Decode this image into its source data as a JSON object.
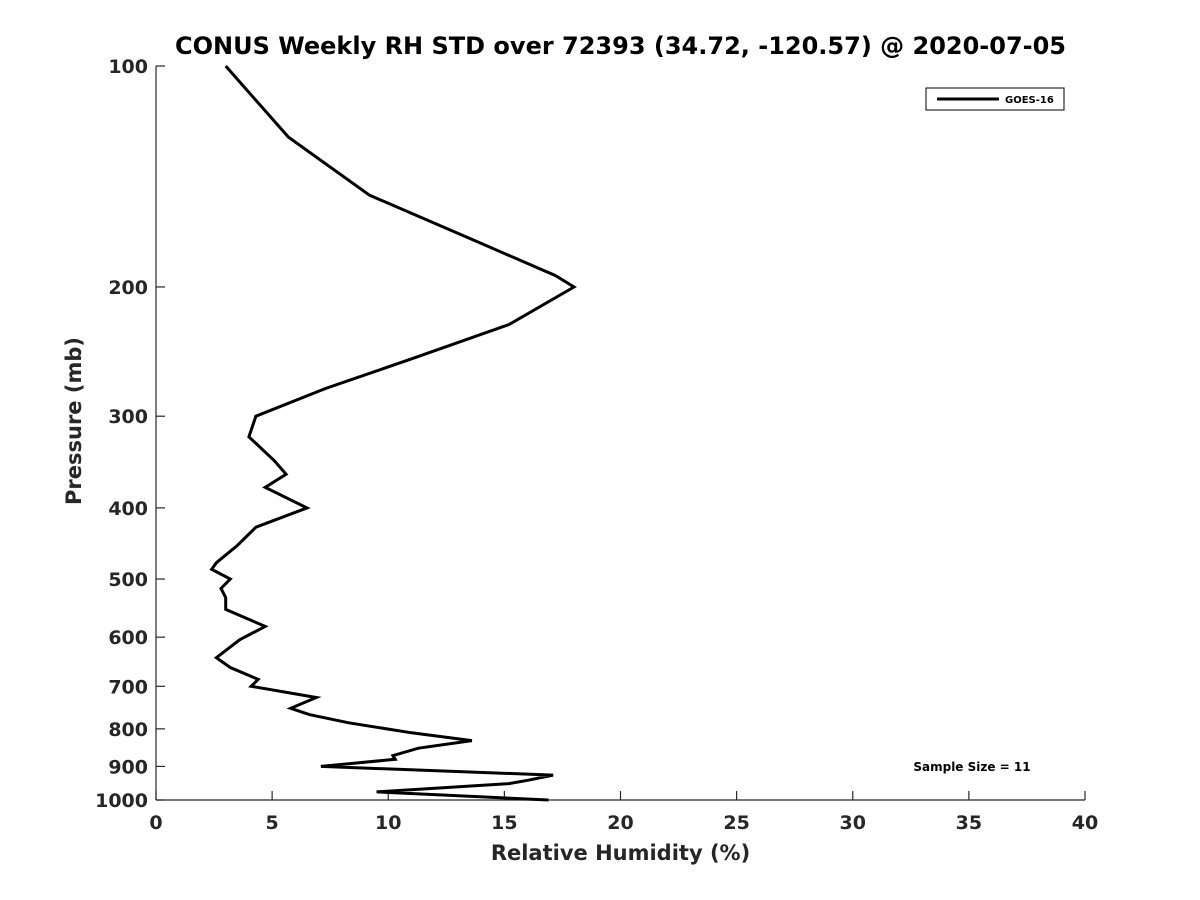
{
  "chart_data": {
    "type": "line",
    "title": "CONUS Weekly RH STD over 72393 (34.72, -120.57) @ 2020-07-05",
    "xlabel": "Relative Humidity (%)",
    "ylabel": "Pressure (mb)",
    "xlim": [
      0,
      40
    ],
    "ylim": [
      100,
      1000
    ],
    "y_scale": "log",
    "y_reversed": true,
    "x_ticks": [
      0,
      5,
      10,
      15,
      20,
      25,
      30,
      35,
      40
    ],
    "y_ticks": [
      100,
      200,
      300,
      400,
      500,
      600,
      700,
      800,
      900,
      1000
    ],
    "grid": false,
    "legend_position": "top-right",
    "series": [
      {
        "name": "GOES-16",
        "color": "#000000",
        "points": [
          [
            3.0,
            100
          ],
          [
            5.7,
            125
          ],
          [
            9.2,
            150
          ],
          [
            14.1,
            175
          ],
          [
            17.2,
            193
          ],
          [
            18.0,
            200
          ],
          [
            15.2,
            225
          ],
          [
            11.1,
            250
          ],
          [
            7.3,
            275
          ],
          [
            4.3,
            300
          ],
          [
            4.0,
            320
          ],
          [
            5.1,
            345
          ],
          [
            5.6,
            360
          ],
          [
            4.7,
            375
          ],
          [
            6.5,
            400
          ],
          [
            4.3,
            425
          ],
          [
            3.5,
            450
          ],
          [
            2.6,
            475
          ],
          [
            2.4,
            485
          ],
          [
            3.2,
            500
          ],
          [
            2.8,
            515
          ],
          [
            3.0,
            530
          ],
          [
            3.0,
            550
          ],
          [
            4.7,
            580
          ],
          [
            3.6,
            605
          ],
          [
            2.6,
            640
          ],
          [
            3.2,
            660
          ],
          [
            4.4,
            685
          ],
          [
            4.1,
            700
          ],
          [
            6.9,
            725
          ],
          [
            5.8,
            750
          ],
          [
            6.6,
            765
          ],
          [
            8.3,
            785
          ],
          [
            11.0,
            810
          ],
          [
            13.6,
            830
          ],
          [
            11.3,
            850
          ],
          [
            10.2,
            870
          ],
          [
            10.3,
            880
          ],
          [
            7.1,
            900
          ],
          [
            17.1,
            925
          ],
          [
            16.0,
            940
          ],
          [
            15.2,
            950
          ],
          [
            9.5,
            975
          ],
          [
            16.9,
            1000
          ]
        ]
      }
    ],
    "annotations": [
      {
        "text": "Sample Size = 11",
        "position": "lower-right"
      }
    ]
  }
}
